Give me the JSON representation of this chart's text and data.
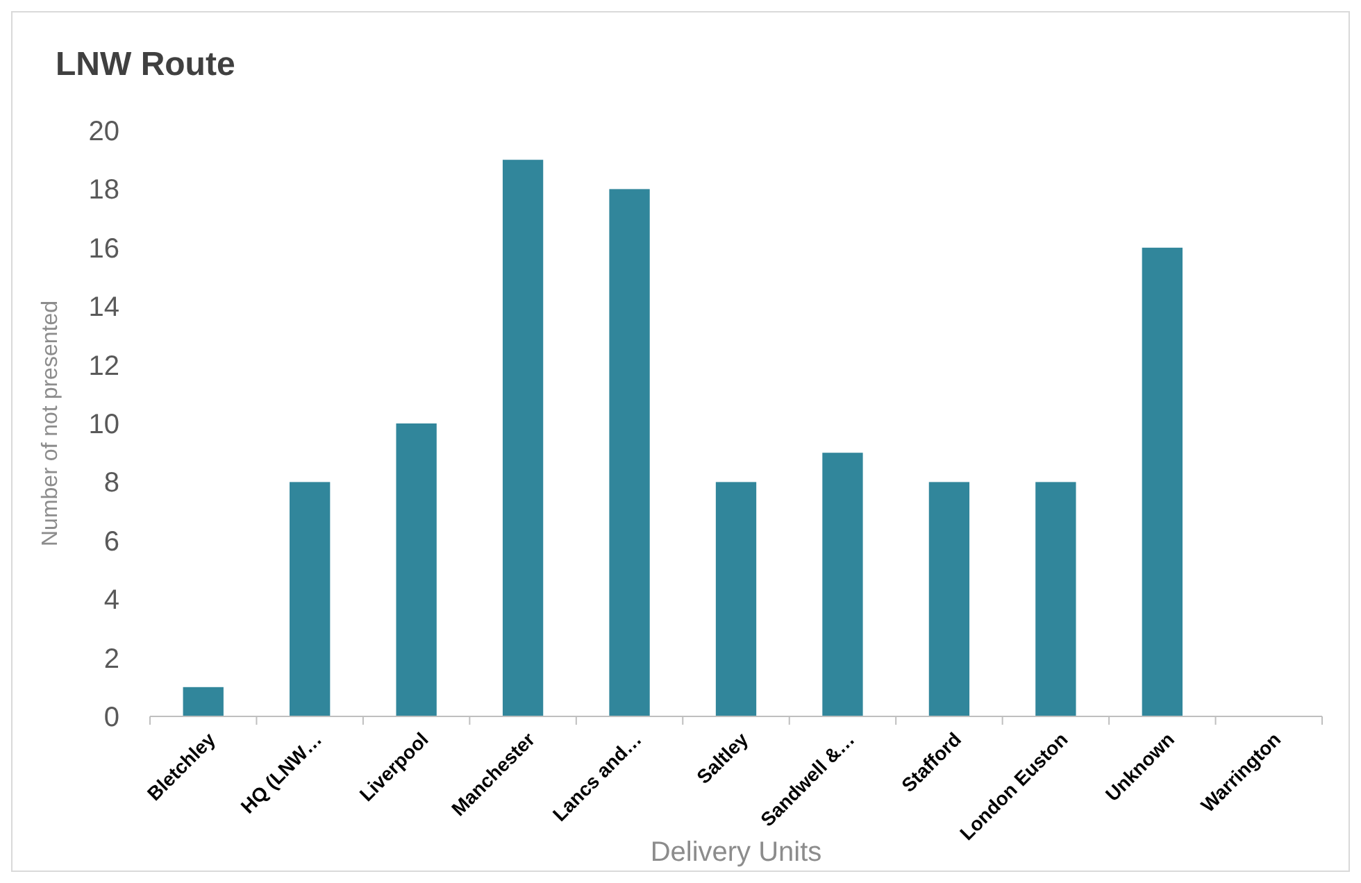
{
  "chart_data": {
    "type": "bar",
    "title": "LNW Route",
    "xlabel": "Delivery Units",
    "ylabel": "Number of not presented",
    "categories": [
      "Bletchley",
      "HQ (LNW…",
      "Liverpool",
      "Manchester",
      "Lancs and…",
      "Saltley",
      "Sandwell &…",
      "Stafford",
      "London Euston",
      "Unknown",
      "Warrington"
    ],
    "values": [
      1,
      8,
      10,
      19,
      18,
      8,
      9,
      8,
      8,
      16,
      0
    ],
    "color": "#31869b",
    "ylim": [
      0,
      20
    ],
    "yticks": [
      0,
      2,
      4,
      6,
      8,
      10,
      12,
      14,
      16,
      18,
      20
    ]
  }
}
